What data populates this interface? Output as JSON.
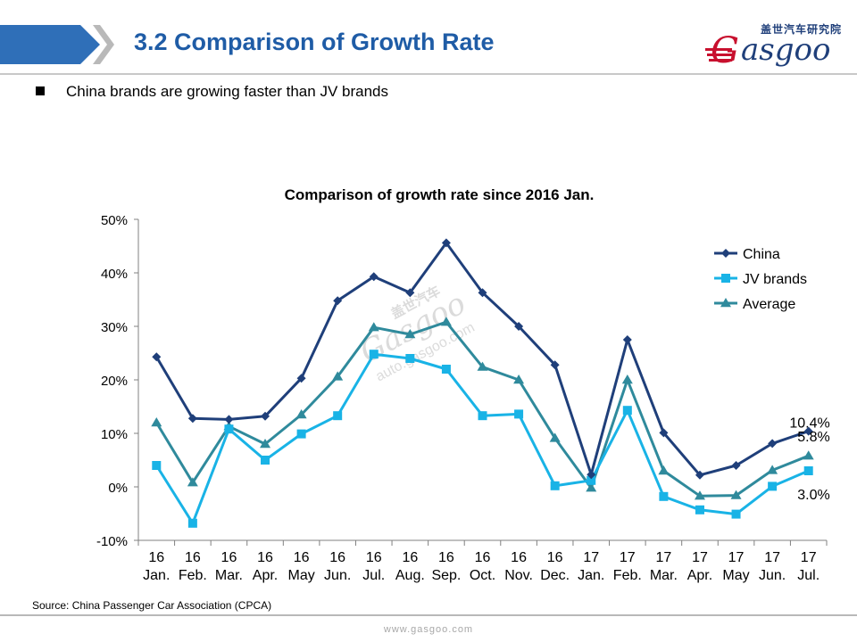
{
  "header": {
    "title": "3.2 Comparison of Growth Rate",
    "logo_cn": "盖世汽车研究院",
    "logo_text": "asgoo",
    "logo_initial": "G",
    "colors": {
      "title": "#1f5ca6",
      "bar": "#2f6fb8",
      "logo": "#1f3f7a",
      "logo_accent": "#c8102e"
    }
  },
  "bullet": {
    "text": "China brands are growing faster than JV brands"
  },
  "chart_data": {
    "type": "line",
    "title": "Comparison of growth rate since 2016 Jan.",
    "categories_year": [
      "16",
      "16",
      "16",
      "16",
      "16",
      "16",
      "16",
      "16",
      "16",
      "16",
      "16",
      "16",
      "17",
      "17",
      "17",
      "17",
      "17",
      "17",
      "17"
    ],
    "categories_month": [
      "Jan.",
      "Feb.",
      "Mar.",
      "Apr.",
      "May",
      "Jun.",
      "Jul.",
      "Aug.",
      "Sep.",
      "Oct.",
      "Nov.",
      "Dec.",
      "Jan.",
      "Feb.",
      "Mar.",
      "Apr.",
      "May",
      "Jun.",
      "Jul."
    ],
    "yticks": [
      "50%",
      "40%",
      "30%",
      "20%",
      "10%",
      "0%",
      "-10%"
    ],
    "ylim": [
      -10,
      50
    ],
    "legend_position": "top-right",
    "series": [
      {
        "name": "China",
        "color": "#1f3f7a",
        "marker": "diamond",
        "values": [
          24.3,
          12.8,
          12.6,
          13.2,
          20.3,
          34.8,
          39.3,
          36.3,
          45.6,
          36.3,
          30.0,
          22.8,
          2.3,
          27.5,
          10.1,
          2.2,
          4.0,
          8.1,
          10.4
        ]
      },
      {
        "name": "JV brands",
        "color": "#19b3e6",
        "marker": "square",
        "values": [
          4.0,
          -6.8,
          10.8,
          5.0,
          9.9,
          13.3,
          24.8,
          24.0,
          22.0,
          13.3,
          13.6,
          0.2,
          1.2,
          14.3,
          -1.8,
          -4.3,
          -5.1,
          0.1,
          3.0
        ]
      },
      {
        "name": "Average",
        "color": "#2f8a9c",
        "marker": "triangle",
        "values": [
          12.0,
          0.8,
          11.3,
          8.0,
          13.5,
          20.6,
          29.8,
          28.5,
          30.8,
          22.4,
          20.0,
          9.1,
          -0.2,
          20.0,
          3.0,
          -1.7,
          -1.6,
          3.1,
          5.8
        ]
      }
    ],
    "annotations": [
      "10.4%",
      "5.8%",
      "3.0%"
    ]
  },
  "watermark": {
    "cn": "盖世汽车",
    "word": "Gasgoo",
    "url": "auto.gasgoo.com"
  },
  "source": "Source: China Passenger Car Association (CPCA)",
  "footer": {
    "url": "www.gasgoo.com"
  }
}
